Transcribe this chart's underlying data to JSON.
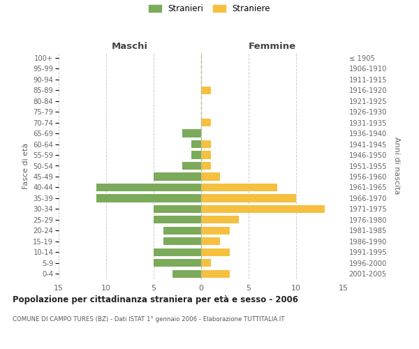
{
  "age_groups": [
    "0-4",
    "5-9",
    "10-14",
    "15-19",
    "20-24",
    "25-29",
    "30-34",
    "35-39",
    "40-44",
    "45-49",
    "50-54",
    "55-59",
    "60-64",
    "65-69",
    "70-74",
    "75-79",
    "80-84",
    "85-89",
    "90-94",
    "95-99",
    "100+"
  ],
  "birth_years": [
    "2001-2005",
    "1996-2000",
    "1991-1995",
    "1986-1990",
    "1981-1985",
    "1976-1980",
    "1971-1975",
    "1966-1970",
    "1961-1965",
    "1956-1960",
    "1951-1955",
    "1946-1950",
    "1941-1945",
    "1936-1940",
    "1931-1935",
    "1926-1930",
    "1921-1925",
    "1916-1920",
    "1911-1915",
    "1906-1910",
    "≤ 1905"
  ],
  "maschi": [
    3,
    5,
    5,
    4,
    4,
    5,
    5,
    11,
    11,
    5,
    2,
    1,
    1,
    2,
    0,
    0,
    0,
    0,
    0,
    0,
    0
  ],
  "femmine": [
    3,
    1,
    3,
    2,
    3,
    4,
    13,
    10,
    8,
    2,
    1,
    1,
    1,
    0,
    1,
    0,
    0,
    1,
    0,
    0,
    0
  ],
  "maschi_color": "#7aaa5a",
  "femmine_color": "#f5c040",
  "background_color": "#ffffff",
  "grid_color": "#cccccc",
  "title": "Popolazione per cittadinanza straniera per età e sesso - 2006",
  "subtitle": "COMUNE DI CAMPO TURES (BZ) - Dati ISTAT 1° gennaio 2006 - Elaborazione TUTTITALIA.IT",
  "ylabel_left": "Fasce di età",
  "ylabel_right": "Anni di nascita",
  "xlabel_left": "Maschi",
  "xlabel_right": "Femmine",
  "legend_maschi": "Stranieri",
  "legend_femmine": "Straniere",
  "xlim": 15
}
